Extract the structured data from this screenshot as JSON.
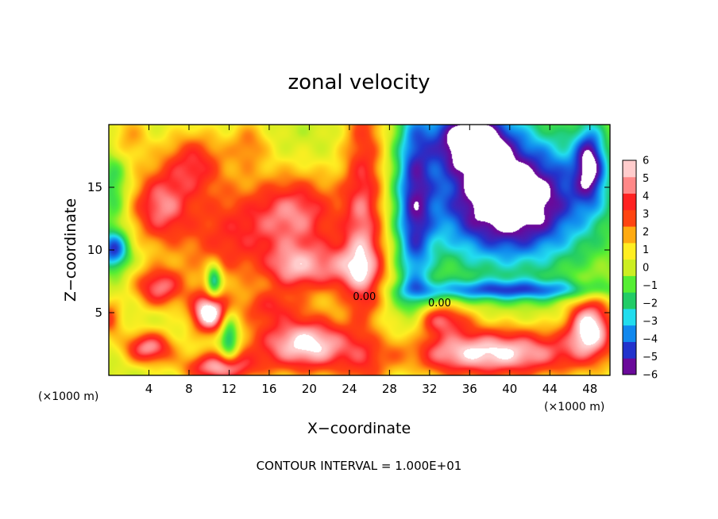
{
  "chart_data": {
    "type": "heatmap",
    "title": "zonal velocity",
    "xlabel": "X−coordinate",
    "ylabel": "Z−coordinate",
    "x_unit": "(×1000 m)",
    "y_unit": "(×1000 m)",
    "xlim": [
      0,
      50
    ],
    "ylim": [
      0,
      20
    ],
    "x_ticks": [
      4,
      8,
      12,
      16,
      20,
      24,
      28,
      32,
      36,
      40,
      44,
      48
    ],
    "y_ticks": [
      5,
      10,
      15
    ],
    "colorbar": {
      "ticks": [
        6,
        5,
        4,
        3,
        2,
        1,
        0,
        -1,
        -2,
        -3,
        -4,
        -5,
        -6
      ],
      "tick_labels": [
        "6",
        "5",
        "4",
        "3",
        "2",
        "1",
        "0",
        "−1",
        "−2",
        "−3",
        "−4",
        "−5",
        "−6"
      ],
      "range": [
        -6,
        6
      ],
      "colors": [
        "#6a0a9a",
        "#2233cc",
        "#1188ee",
        "#22ddee",
        "#22cc66",
        "#55ee33",
        "#ccee22",
        "#ffee22",
        "#ffaa11",
        "#ff4411",
        "#ff2222",
        "#ff8888",
        "#ffcccc"
      ]
    },
    "contour_labels": [
      {
        "text": "0.00",
        "x": 25.5,
        "z": 6.0
      },
      {
        "text": "0.00",
        "x": 33.0,
        "z": 5.5
      }
    ],
    "blobs": [
      {
        "x": 25.5,
        "z": 11,
        "sx": 2.2,
        "sz": 14,
        "v": 4.6
      },
      {
        "x": 22,
        "z": 8.5,
        "sx": 4.5,
        "sz": 2.2,
        "v": 4
      },
      {
        "x": 19,
        "z": 13,
        "sx": 4.5,
        "sz": 3.2,
        "v": 4.4
      },
      {
        "x": 18,
        "z": 8.5,
        "sx": 2.5,
        "sz": 1.8,
        "v": 2.5
      },
      {
        "x": 12,
        "z": 11,
        "sx": 5.5,
        "sz": 4.5,
        "v": 3.5
      },
      {
        "x": 5,
        "z": 13.5,
        "sx": 3,
        "sz": 3,
        "v": 4.4
      },
      {
        "x": 8.5,
        "z": 17,
        "sx": 3,
        "sz": 2.5,
        "v": 3.6
      },
      {
        "x": 14,
        "z": 18.5,
        "sx": 2,
        "sz": 2,
        "v": 2.2
      },
      {
        "x": 5,
        "z": 7,
        "sx": 2.5,
        "sz": 1.6,
        "v": 4.6
      },
      {
        "x": 10,
        "z": 5,
        "sx": 1.8,
        "sz": 1.6,
        "v": 6.8
      },
      {
        "x": 4,
        "z": 2.2,
        "sx": 2.5,
        "sz": 1.3,
        "v": 5.2
      },
      {
        "x": 11,
        "z": 0.6,
        "sx": 3.5,
        "sz": 1.2,
        "v": 5.5
      },
      {
        "x": 20,
        "z": 2.5,
        "sx": 6,
        "sz": 2.3,
        "v": 6.5
      },
      {
        "x": 16,
        "z": 5.5,
        "sx": 3,
        "sz": 1.3,
        "v": 2.5
      },
      {
        "x": 38,
        "z": 1.8,
        "sx": 10,
        "sz": 2,
        "v": 6.5
      },
      {
        "x": 33,
        "z": 4.5,
        "sx": 3,
        "sz": 1.2,
        "v": 4
      },
      {
        "x": 48,
        "z": 4,
        "sx": 2.2,
        "sz": 2.3,
        "v": 6.5
      },
      {
        "x": 0,
        "z": 4.5,
        "sx": 1.3,
        "sz": 1.3,
        "v": 3.5
      },
      {
        "x": 2,
        "z": 19,
        "sx": 2,
        "sz": 2,
        "v": 2
      },
      {
        "x": 40,
        "z": 14,
        "sx": 8,
        "sz": 5,
        "v": -8
      },
      {
        "x": 30.5,
        "z": 13,
        "sx": 1.8,
        "sz": 10,
        "v": -4
      },
      {
        "x": 36,
        "z": 19,
        "sx": 4,
        "sz": 2.5,
        "v": -6
      },
      {
        "x": 40,
        "z": 6.8,
        "sx": 10,
        "sz": 0.8,
        "v": -4
      },
      {
        "x": 48,
        "z": 17,
        "sx": 1.5,
        "sz": 3,
        "v": -5
      },
      {
        "x": 10.5,
        "z": 7.5,
        "sx": 0.8,
        "sz": 1.3,
        "v": -5
      },
      {
        "x": 12,
        "z": 3,
        "sx": 1,
        "sz": 2,
        "v": -4
      },
      {
        "x": 25.5,
        "z": 3,
        "sx": 3,
        "sz": 2.5,
        "v": -3.5
      },
      {
        "x": 0.5,
        "z": 10,
        "sx": 1.5,
        "sz": 1.5,
        "v": -5
      },
      {
        "x": 0.5,
        "z": 15,
        "sx": 1.5,
        "sz": 3,
        "v": -2
      }
    ]
  }
}
